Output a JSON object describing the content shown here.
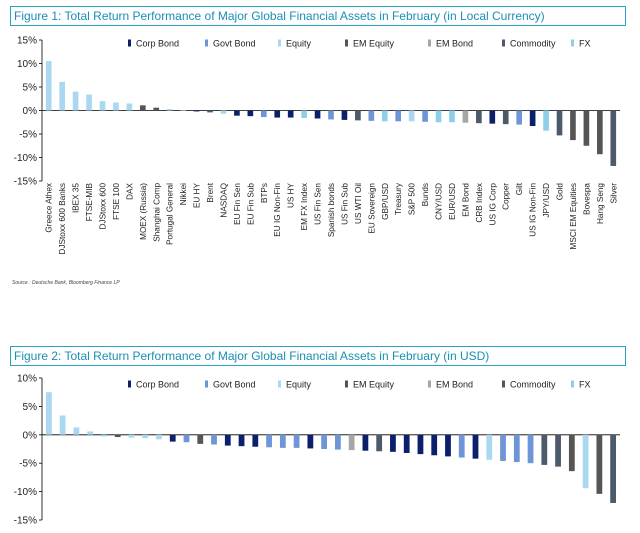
{
  "colors": {
    "Corp Bond": "#0b1f6b",
    "Govt Bond": "#6e95d6",
    "Equity": "#a9d8f0",
    "EM Equity": "#555555",
    "EM Bond": "#a6a6a6",
    "Commodity": "#4c5a6a",
    "FX": "#8fcfe8",
    "title": "#1a8fb3",
    "border": "#2aa3c2"
  },
  "legend": [
    "Corp Bond",
    "Govt Bond",
    "Equity",
    "EM Equity",
    "EM Bond",
    "Commodity",
    "FX"
  ],
  "figure1": {
    "title": "Figure 1: Total Return Performance of Major Global Financial Assets in February (in Local Currency)",
    "source": "Source : Deutsche Bank, Bloomberg Finance LP"
  },
  "figure2": {
    "title": "Figure 2: Total Return Performance of Major Global Financial Assets in February (in USD)"
  },
  "chart_data": [
    {
      "type": "bar",
      "title": "Figure 1: Total Return Performance of Major Global Financial Assets in February (in Local Currency)",
      "ylim": [
        -15,
        15
      ],
      "yticks": [
        "15%",
        "10%",
        "5%",
        "0%",
        "-5%",
        "-10%",
        "-15%"
      ],
      "legend_position": "top",
      "grid": false,
      "categories": [
        "Greece Athex",
        "DJStoxx 600 Banks",
        "IBEX 35",
        "FTSE-MIB",
        "DJStoxx 600",
        "FTSE 100",
        "DAX",
        "MOEX (Russia)",
        "Shanghai Comp",
        "Portugal General",
        "Nikkei",
        "EU HY",
        "Brent",
        "NASDAQ",
        "EU Fin Sen",
        "EU Fin Sub",
        "BTPs",
        "EU IG Non-Fin",
        "US HY",
        "EM FX Index",
        "US Fin Sen",
        "Spanish bonds",
        "US Fin Sub",
        "US WTI Oil",
        "EU Sovereign",
        "GBP/USD",
        "Treasury",
        "S&P 500",
        "Bunds",
        "CNY/USD",
        "EUR/USD",
        "EM Bond",
        "CRB Index",
        "US IG Corp",
        "Copper",
        "Gilt",
        "US IG Non-Fin",
        "JPY/USD",
        "Gold",
        "MSCI EM Equities",
        "Bovespa",
        "Hang Seng",
        "Silver"
      ],
      "values": [
        10.5,
        6.1,
        4.0,
        3.4,
        2.0,
        1.7,
        1.5,
        1.1,
        0.6,
        0.3,
        0.1,
        -0.2,
        -0.4,
        -0.7,
        -1.1,
        -1.2,
        -1.4,
        -1.5,
        -1.5,
        -1.6,
        -1.7,
        -1.9,
        -2.0,
        -2.1,
        -2.2,
        -2.3,
        -2.3,
        -2.3,
        -2.4,
        -2.5,
        -2.5,
        -2.6,
        -2.7,
        -2.8,
        -2.9,
        -3.0,
        -3.3,
        -4.3,
        -5.3,
        -6.3,
        -7.5,
        -9.3,
        -11.8
      ],
      "asset_class": [
        "Equity",
        "Equity",
        "Equity",
        "Equity",
        "Equity",
        "Equity",
        "Equity",
        "EM Equity",
        "EM Equity",
        "Equity",
        "Equity",
        "Corp Bond",
        "Commodity",
        "Equity",
        "Corp Bond",
        "Corp Bond",
        "Govt Bond",
        "Corp Bond",
        "Corp Bond",
        "FX",
        "Corp Bond",
        "Govt Bond",
        "Corp Bond",
        "Commodity",
        "Govt Bond",
        "FX",
        "Govt Bond",
        "Equity",
        "Govt Bond",
        "FX",
        "FX",
        "EM Bond",
        "Commodity",
        "Corp Bond",
        "Commodity",
        "Govt Bond",
        "Corp Bond",
        "FX",
        "Commodity",
        "EM Equity",
        "EM Equity",
        "EM Equity",
        "Commodity"
      ]
    },
    {
      "type": "bar",
      "title": "Figure 2: Total Return Performance of Major Global Financial Assets in February (in USD)",
      "ylim": [
        -15,
        10
      ],
      "yticks": [
        "10%",
        "5%",
        "0%",
        "-5%",
        "-10%",
        "-15%"
      ],
      "legend_position": "top",
      "grid": false,
      "values": [
        7.5,
        3.4,
        1.3,
        0.6,
        -0.3,
        -0.4,
        -0.5,
        -0.6,
        -0.8,
        -1.2,
        -1.3,
        -1.6,
        -1.7,
        -1.9,
        -2.0,
        -2.1,
        -2.2,
        -2.3,
        -2.3,
        -2.4,
        -2.5,
        -2.6,
        -2.7,
        -2.8,
        -2.9,
        -3.0,
        -3.2,
        -3.4,
        -3.6,
        -3.8,
        -4.0,
        -4.2,
        -4.4,
        -4.6,
        -4.8,
        -5.0,
        -5.3,
        -5.6,
        -6.4,
        -9.4,
        -10.4,
        -12.0
      ],
      "asset_class": [
        "Equity",
        "Equity",
        "Equity",
        "Equity",
        "Equity",
        "EM Equity",
        "Equity",
        "Equity",
        "Equity",
        "Corp Bond",
        "Govt Bond",
        "EM Equity",
        "Govt Bond",
        "Corp Bond",
        "Corp Bond",
        "Corp Bond",
        "Govt Bond",
        "Govt Bond",
        "Govt Bond",
        "Corp Bond",
        "Govt Bond",
        "Govt Bond",
        "EM Bond",
        "Corp Bond",
        "Commodity",
        "Corp Bond",
        "Corp Bond",
        "Corp Bond",
        "Corp Bond",
        "Corp Bond",
        "Govt Bond",
        "Corp Bond",
        "Equity",
        "Govt Bond",
        "Govt Bond",
        "Govt Bond",
        "Commodity",
        "Commodity",
        "EM Equity",
        "Equity",
        "EM Equity",
        "Commodity"
      ]
    }
  ]
}
